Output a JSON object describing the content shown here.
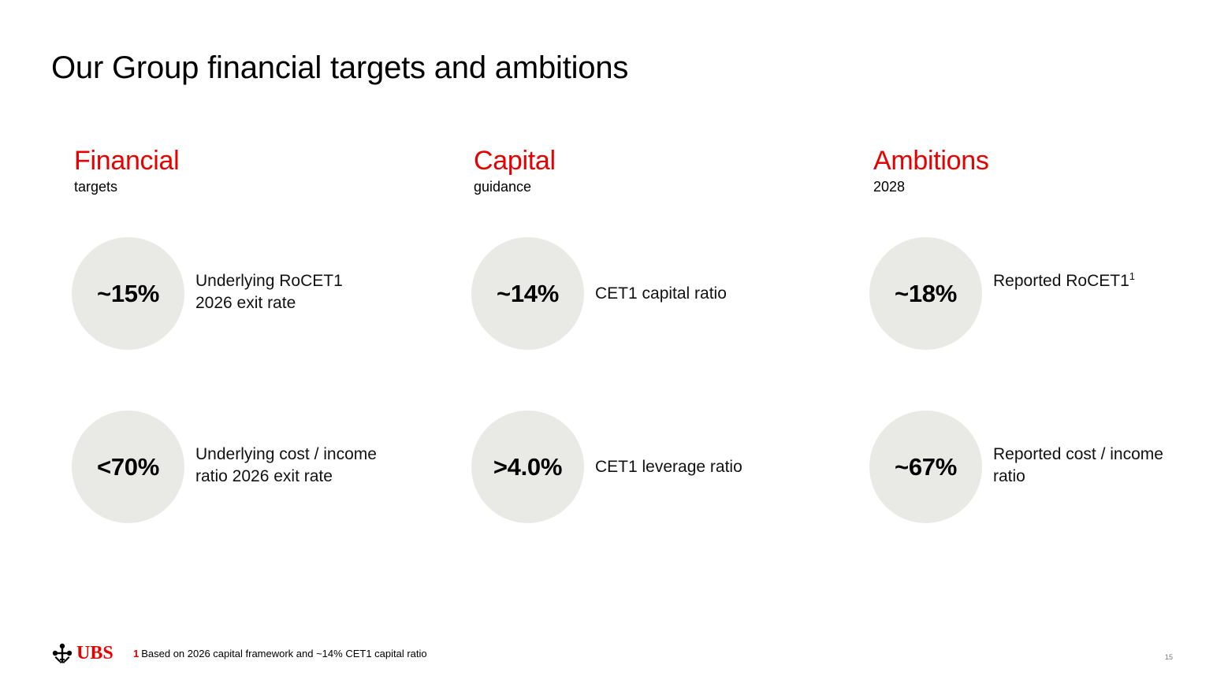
{
  "title": "Our Group financial targets and ambitions",
  "colors": {
    "accent": "#e60000",
    "circle_fill": "#e9e9e5"
  },
  "columns": [
    {
      "heading": "Financial",
      "subheading": "targets",
      "metrics": [
        {
          "value": "~15%",
          "label_line1": "Underlying RoCET1",
          "label_line2": "2026 exit rate"
        },
        {
          "value": "<70%",
          "label_line1": "Underlying cost / income",
          "label_line2": "ratio 2026 exit rate"
        }
      ]
    },
    {
      "heading": "Capital",
      "subheading": "guidance",
      "metrics": [
        {
          "value": "~14%",
          "label": "CET1 capital ratio"
        },
        {
          "value": ">4.0%",
          "label": "CET1 leverage ratio"
        }
      ]
    },
    {
      "heading": "Ambitions",
      "subheading": "2028",
      "metrics": [
        {
          "value": "~18%",
          "label": "Reported RoCET1",
          "footnote_ref": "1"
        },
        {
          "value": "~67%",
          "label_line1": "Reported cost / income",
          "label_line2": "ratio"
        }
      ]
    }
  ],
  "footer": {
    "logo_text": "UBS",
    "logo_icon": "three-keys-icon",
    "footnote_number": "1",
    "footnote_text": "Based on 2026 capital framework and ~14% CET1 capital ratio",
    "page_number": "15"
  }
}
